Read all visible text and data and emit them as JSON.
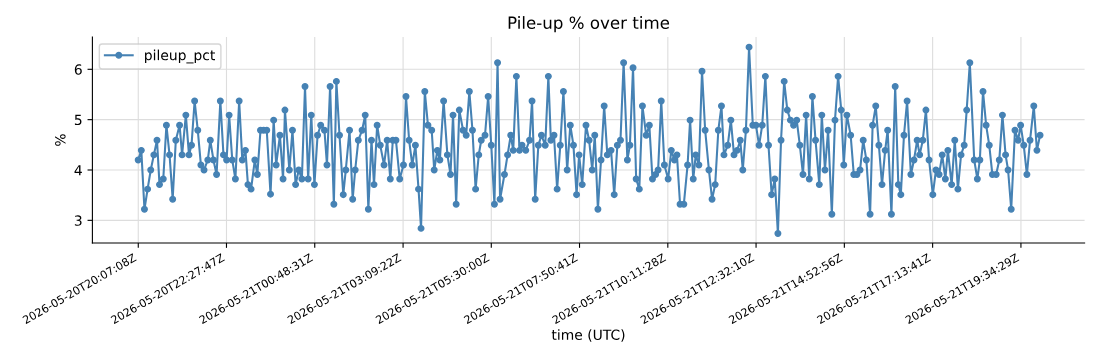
{
  "chart_data": {
    "type": "line",
    "title": "Pile-up % over time",
    "xlabel": "time (UTC)",
    "ylabel": "%",
    "series": [
      {
        "name": "pileup_pct",
        "color": "#4682b4",
        "x": [
          "2026-05-20T20:07",
          "2026-05-20T20:12",
          "2026-05-20T20:17",
          "2026-05-20T20:22",
          "2026-05-20T20:27",
          "2026-05-20T20:32",
          "2026-05-20T20:37",
          "2026-05-20T20:41",
          "2026-05-20T20:47",
          "2026-05-20T20:52",
          "2026-05-20T20:57",
          "2026-05-20T21:02",
          "2026-05-20T21:07",
          "2026-05-20T21:13",
          "2026-05-20T21:17",
          "2026-05-20T21:23",
          "2026-05-20T21:28",
          "2026-05-20T21:32",
          "2026-05-20T21:37",
          "2026-05-20T21:42",
          "2026-05-20T21:47",
          "2026-05-20T21:52",
          "2026-05-20T21:58",
          "2026-05-20T22:02",
          "2026-05-20T22:07",
          "2026-05-20T22:12",
          "2026-05-20T22:18",
          "2026-05-20T22:23",
          "2026-05-20T22:28",
          "2026-05-20T22:32",
          "2026-05-20T22:37",
          "2026-05-20T22:42",
          "2026-05-20T22:48",
          "2026-05-20T22:53",
          "2026-05-20T22:58",
          "2026-05-20T23:02",
          "2026-05-20T23:07",
          "2026-05-20T23:13",
          "2026-05-20T23:17",
          "2026-05-20T23:22",
          "2026-05-20T23:27",
          "2026-05-20T23:32",
          "2026-05-20T23:38",
          "2026-05-20T23:43",
          "2026-05-20T23:47",
          "2026-05-20T23:53",
          "2026-05-20T23:58",
          "2026-05-21T00:01",
          "2026-05-21T00:08",
          "2026-05-21T00:13",
          "2026-05-21T00:18",
          "2026-05-21T00:23",
          "2026-05-21T00:28",
          "2026-05-21T00:33",
          "2026-05-21T00:38",
          "2026-05-21T00:43",
          "2026-05-21T00:48",
          "2026-05-21T00:53",
          "2026-05-21T00:58",
          "2026-05-21T01:04",
          "2026-05-21T01:08",
          "2026-05-21T01:13",
          "2026-05-21T01:19",
          "2026-05-21T01:23",
          "2026-05-21T01:28",
          "2026-05-21T01:34",
          "2026-05-21T01:38",
          "2026-05-21T01:44",
          "2026-05-21T01:49",
          "2026-05-21T01:53",
          "2026-05-21T01:58",
          "2026-05-21T02:04",
          "2026-05-21T02:09",
          "2026-05-21T02:14",
          "2026-05-21T02:19",
          "2026-05-21T02:23",
          "2026-05-21T02:28",
          "2026-05-21T02:33",
          "2026-05-21T02:39",
          "2026-05-21T02:44",
          "2026-05-21T02:49",
          "2026-05-21T02:53",
          "2026-05-21T02:58",
          "2026-05-21T03:04",
          "2026-05-21T03:10",
          "2026-05-21T03:14",
          "2026-05-21T03:19",
          "2026-05-21T03:24",
          "2026-05-21T03:29",
          "2026-05-21T03:34",
          "2026-05-21T03:38",
          "2026-05-21T03:44",
          "2026-05-21T03:49",
          "2026-05-21T03:55",
          "2026-05-21T03:59",
          "2026-05-21T04:04",
          "2026-05-21T04:08",
          "2026-05-21T04:14",
          "2026-05-21T04:20",
          "2026-05-21T04:25",
          "2026-05-21T04:29",
          "2026-05-21T04:34",
          "2026-05-21T04:39",
          "2026-05-21T04:45",
          "2026-05-21T04:50",
          "2026-05-21T04:55",
          "2026-05-21T05:00",
          "2026-05-21T05:05",
          "2026-05-21T05:10",
          "2026-05-21T05:14",
          "2026-05-21T05:20",
          "2026-05-21T05:25",
          "2026-05-21T05:30",
          "2026-05-21T05:35",
          "2026-05-21T05:40",
          "2026-05-21T05:44",
          "2026-05-21T05:51",
          "2026-05-21T05:56",
          "2026-05-21T06:01",
          "2026-05-21T06:05",
          "2026-05-21T06:10",
          "2026-05-21T06:15",
          "2026-05-21T06:19",
          "2026-05-21T06:25",
          "2026-05-21T06:31",
          "2026-05-21T06:35",
          "2026-05-21T06:40",
          "2026-05-21T06:45",
          "2026-05-21T06:50",
          "2026-05-21T06:56",
          "2026-05-21T07:01",
          "2026-05-21T07:05",
          "2026-05-21T07:10",
          "2026-05-21T07:15",
          "2026-05-21T07:20",
          "2026-05-21T07:25",
          "2026-05-21T07:31",
          "2026-05-21T07:36",
          "2026-05-21T07:41",
          "2026-05-21T07:46",
          "2026-05-21T07:50",
          "2026-05-21T07:55",
          "2026-05-21T08:01",
          "2026-05-21T08:06",
          "2026-05-21T08:11",
          "2026-05-21T08:15",
          "2026-05-21T08:20",
          "2026-05-21T08:25",
          "2026-05-21T08:30",
          "2026-05-21T08:35",
          "2026-05-21T08:41",
          "2026-05-21T08:46",
          "2026-05-21T08:51",
          "2026-05-21T08:56",
          "2026-05-21T09:01",
          "2026-05-21T09:07",
          "2026-05-21T09:11",
          "2026-05-21T09:16",
          "2026-05-21T09:21",
          "2026-05-21T09:26",
          "2026-05-21T09:31",
          "2026-05-21T09:37",
          "2026-05-21T09:42",
          "2026-05-21T09:47",
          "2026-05-21T09:52",
          "2026-05-21T09:56",
          "2026-05-21T10:01",
          "2026-05-21T10:06",
          "2026-05-21T10:12",
          "2026-05-21T10:17",
          "2026-05-21T10:22",
          "2026-05-21T10:26",
          "2026-05-21T10:31",
          "2026-05-21T10:37",
          "2026-05-21T10:43",
          "2026-05-21T10:47",
          "2026-05-21T10:52",
          "2026-05-21T10:56",
          "2026-05-21T11:01",
          "2026-05-21T11:06",
          "2026-05-21T11:11",
          "2026-05-21T11:17",
          "2026-05-21T11:22",
          "2026-05-21T11:27",
          "2026-05-21T11:32",
          "2026-05-21T11:37",
          "2026-05-21T11:41",
          "2026-05-21T11:47",
          "2026-05-21T11:52",
          "2026-05-21T11:57",
          "2026-05-21T12:02",
          "2026-05-21T12:07",
          "2026-05-21T12:11",
          "2026-05-21T12:16",
          "2026-05-21T12:21",
          "2026-05-21T12:27",
          "2026-05-21T12:32",
          "2026-05-21T12:37",
          "2026-05-21T12:42",
          "2026-05-21T12:47",
          "2026-05-21T12:52",
          "2026-05-21T12:57",
          "2026-05-21T13:02",
          "2026-05-21T13:07",
          "2026-05-21T13:12",
          "2026-05-21T13:17",
          "2026-05-21T13:22",
          "2026-05-21T13:27",
          "2026-05-21T13:32",
          "2026-05-21T13:37",
          "2026-05-21T13:42",
          "2026-05-21T13:47",
          "2026-05-21T13:52",
          "2026-05-21T13:57",
          "2026-05-21T14:02",
          "2026-05-21T14:07",
          "2026-05-21T14:13",
          "2026-05-21T14:17",
          "2026-05-21T14:22",
          "2026-05-21T14:27",
          "2026-05-21T14:33",
          "2026-05-21T14:38",
          "2026-05-21T14:43",
          "2026-05-21T14:48",
          "2026-05-21T14:52",
          "2026-05-21T14:57",
          "2026-05-21T15:03",
          "2026-05-21T15:08",
          "2026-05-21T15:13",
          "2026-05-21T15:18",
          "2026-05-21T15:23",
          "2026-05-21T15:28",
          "2026-05-21T15:34",
          "2026-05-21T15:38",
          "2026-05-21T15:43",
          "2026-05-21T15:48",
          "2026-05-21T15:53",
          "2026-05-21T15:58",
          "2026-05-21T16:02",
          "2026-05-21T16:08",
          "2026-05-21T16:14",
          "2026-05-21T16:19",
          "2026-05-21T16:23",
          "2026-05-21T16:28",
          "2026-05-21T16:33",
          "2026-05-21T16:39",
          "2026-05-21T16:44",
          "2026-05-21T16:49",
          "2026-05-21T16:53",
          "2026-05-21T16:58",
          "2026-05-21T17:03",
          "2026-05-21T17:08",
          "2026-05-21T17:14",
          "2026-05-21T17:19",
          "2026-05-21T17:24",
          "2026-05-21T17:29",
          "2026-05-21T17:34",
          "2026-05-21T17:38",
          "2026-05-21T17:44",
          "2026-05-21T17:49",
          "2026-05-21T17:54",
          "2026-05-21T17:59",
          "2026-05-21T18:04",
          "2026-05-21T18:08",
          "2026-05-21T18:13",
          "2026-05-21T18:20",
          "2026-05-21T18:25",
          "2026-05-21T18:29",
          "2026-05-21T18:34",
          "2026-05-21T18:39",
          "2026-05-21T18:44",
          "2026-05-21T18:49",
          "2026-05-21T18:55",
          "2026-05-21T19:00",
          "2026-05-21T19:05",
          "2026-05-21T19:10",
          "2026-05-21T19:14",
          "2026-05-21T19:19",
          "2026-05-21T19:25",
          "2026-05-21T19:30",
          "2026-05-21T19:34",
          "2026-05-21T19:39",
          "2026-05-21T19:44",
          "2026-05-21T19:49",
          "2026-05-21T19:55",
          "2026-05-21T20:00",
          "2026-05-21T20:05"
        ],
        "values": [
          4.2,
          4.39,
          3.22,
          3.62,
          4.0,
          4.3,
          4.59,
          3.71,
          3.82,
          4.89,
          4.3,
          3.42,
          4.59,
          4.89,
          4.3,
          5.09,
          4.3,
          4.49,
          5.37,
          4.79,
          4.1,
          4.0,
          4.2,
          4.59,
          4.2,
          3.91,
          5.37,
          4.3,
          4.2,
          5.09,
          4.2,
          3.82,
          5.37,
          4.2,
          4.39,
          3.71,
          3.62,
          4.2,
          3.91,
          4.79,
          4.79,
          4.79,
          3.52,
          4.99,
          4.1,
          4.69,
          3.82,
          5.19,
          4.0,
          4.79,
          3.71,
          4.0,
          3.82,
          5.66,
          3.82,
          5.09,
          3.71,
          4.69,
          4.89,
          4.79,
          4.1,
          5.66,
          3.32,
          5.76,
          4.69,
          3.51,
          4.0,
          4.79,
          3.42,
          4.0,
          4.59,
          4.79,
          5.09,
          3.22,
          4.59,
          3.71,
          4.89,
          4.49,
          4.1,
          4.59,
          3.82,
          4.59,
          4.59,
          3.82,
          4.1,
          5.46,
          4.59,
          4.1,
          4.49,
          3.62,
          2.84,
          5.56,
          4.89,
          4.79,
          4.0,
          4.39,
          4.2,
          5.37,
          4.3,
          3.91,
          5.09,
          3.32,
          5.19,
          4.79,
          4.69,
          5.56,
          4.79,
          3.62,
          4.3,
          4.59,
          4.69,
          5.46,
          4.49,
          3.32,
          6.13,
          3.42,
          3.91,
          4.3,
          4.69,
          4.39,
          5.86,
          4.39,
          4.49,
          4.39,
          4.59,
          5.37,
          3.42,
          4.49,
          4.69,
          4.49,
          5.86,
          4.59,
          4.69,
          3.62,
          4.49,
          5.56,
          4.0,
          4.89,
          4.49,
          3.51,
          4.3,
          3.71,
          4.89,
          4.59,
          4.0,
          4.69,
          3.22,
          4.2,
          5.27,
          4.3,
          4.39,
          3.51,
          4.49,
          4.59,
          6.13,
          4.2,
          4.49,
          6.03,
          3.82,
          3.62,
          5.27,
          4.69,
          4.89,
          3.82,
          3.91,
          4.0,
          5.37,
          4.1,
          3.82,
          4.39,
          4.2,
          4.3,
          3.32,
          3.32,
          4.1,
          4.99,
          3.82,
          4.3,
          4.1,
          5.96,
          4.79,
          4.0,
          3.42,
          3.71,
          4.79,
          5.27,
          4.3,
          4.49,
          4.99,
          4.3,
          4.39,
          4.59,
          4.0,
          4.79,
          6.44,
          4.89,
          4.89,
          4.49,
          4.89,
          5.86,
          4.49,
          3.51,
          3.82,
          2.74,
          4.59,
          5.76,
          5.19,
          4.99,
          4.89,
          4.99,
          4.49,
          3.91,
          5.09,
          3.82,
          5.46,
          4.59,
          3.71,
          5.09,
          4.0,
          4.79,
          3.12,
          4.99,
          5.86,
          5.19,
          4.1,
          5.09,
          4.69,
          3.91,
          3.91,
          4.0,
          4.59,
          4.2,
          3.12,
          4.89,
          5.27,
          4.49,
          3.71,
          4.39,
          4.79,
          3.12,
          5.66,
          3.71,
          3.51,
          4.69,
          5.37,
          3.91,
          4.2,
          4.59,
          4.3,
          4.59,
          5.19,
          4.2,
          3.51,
          4.0,
          3.91,
          4.3,
          3.82,
          4.39,
          3.71,
          4.59,
          3.62,
          4.3,
          4.49,
          5.19,
          6.13,
          4.2,
          3.82,
          4.2,
          5.56,
          4.89,
          4.49,
          3.91,
          3.91,
          4.2,
          5.09,
          4.3,
          4.0,
          3.22,
          4.79,
          4.59,
          4.89,
          4.49,
          3.91,
          4.59,
          5.27,
          4.39,
          4.69
        ]
      }
    ],
    "xlim": [
      "2026-05-20T18:54",
      "2026-05-21T21:16"
    ],
    "xticks": [
      {
        "value": "2026-05-20T20:07:08",
        "label": "2026-05-20T20:07:08Z"
      },
      {
        "value": "2026-05-20T22:27:47",
        "label": "2026-05-20T22:27:47Z"
      },
      {
        "value": "2026-05-21T00:48:31",
        "label": "2026-05-21T00:48:31Z"
      },
      {
        "value": "2026-05-21T03:09:22",
        "label": "2026-05-21T03:09:22Z"
      },
      {
        "value": "2026-05-21T05:30:00",
        "label": "2026-05-21T05:30:00Z"
      },
      {
        "value": "2026-05-21T07:50:41",
        "label": "2026-05-21T07:50:41Z"
      },
      {
        "value": "2026-05-21T10:11:28",
        "label": "2026-05-21T10:11:28Z"
      },
      {
        "value": "2026-05-21T12:32:10",
        "label": "2026-05-21T12:32:10Z"
      },
      {
        "value": "2026-05-21T14:52:56",
        "label": "2026-05-21T14:52:56Z"
      },
      {
        "value": "2026-05-21T17:13:41",
        "label": "2026-05-21T17:13:41Z"
      },
      {
        "value": "2026-05-21T19:34:29",
        "label": "2026-05-21T19:34:29Z"
      }
    ],
    "ylim": [
      2.55,
      6.64
    ],
    "yticks": [
      3,
      4,
      5,
      6
    ],
    "grid": true,
    "legend": "top left",
    "marker": "circle",
    "line_style": "solid"
  }
}
